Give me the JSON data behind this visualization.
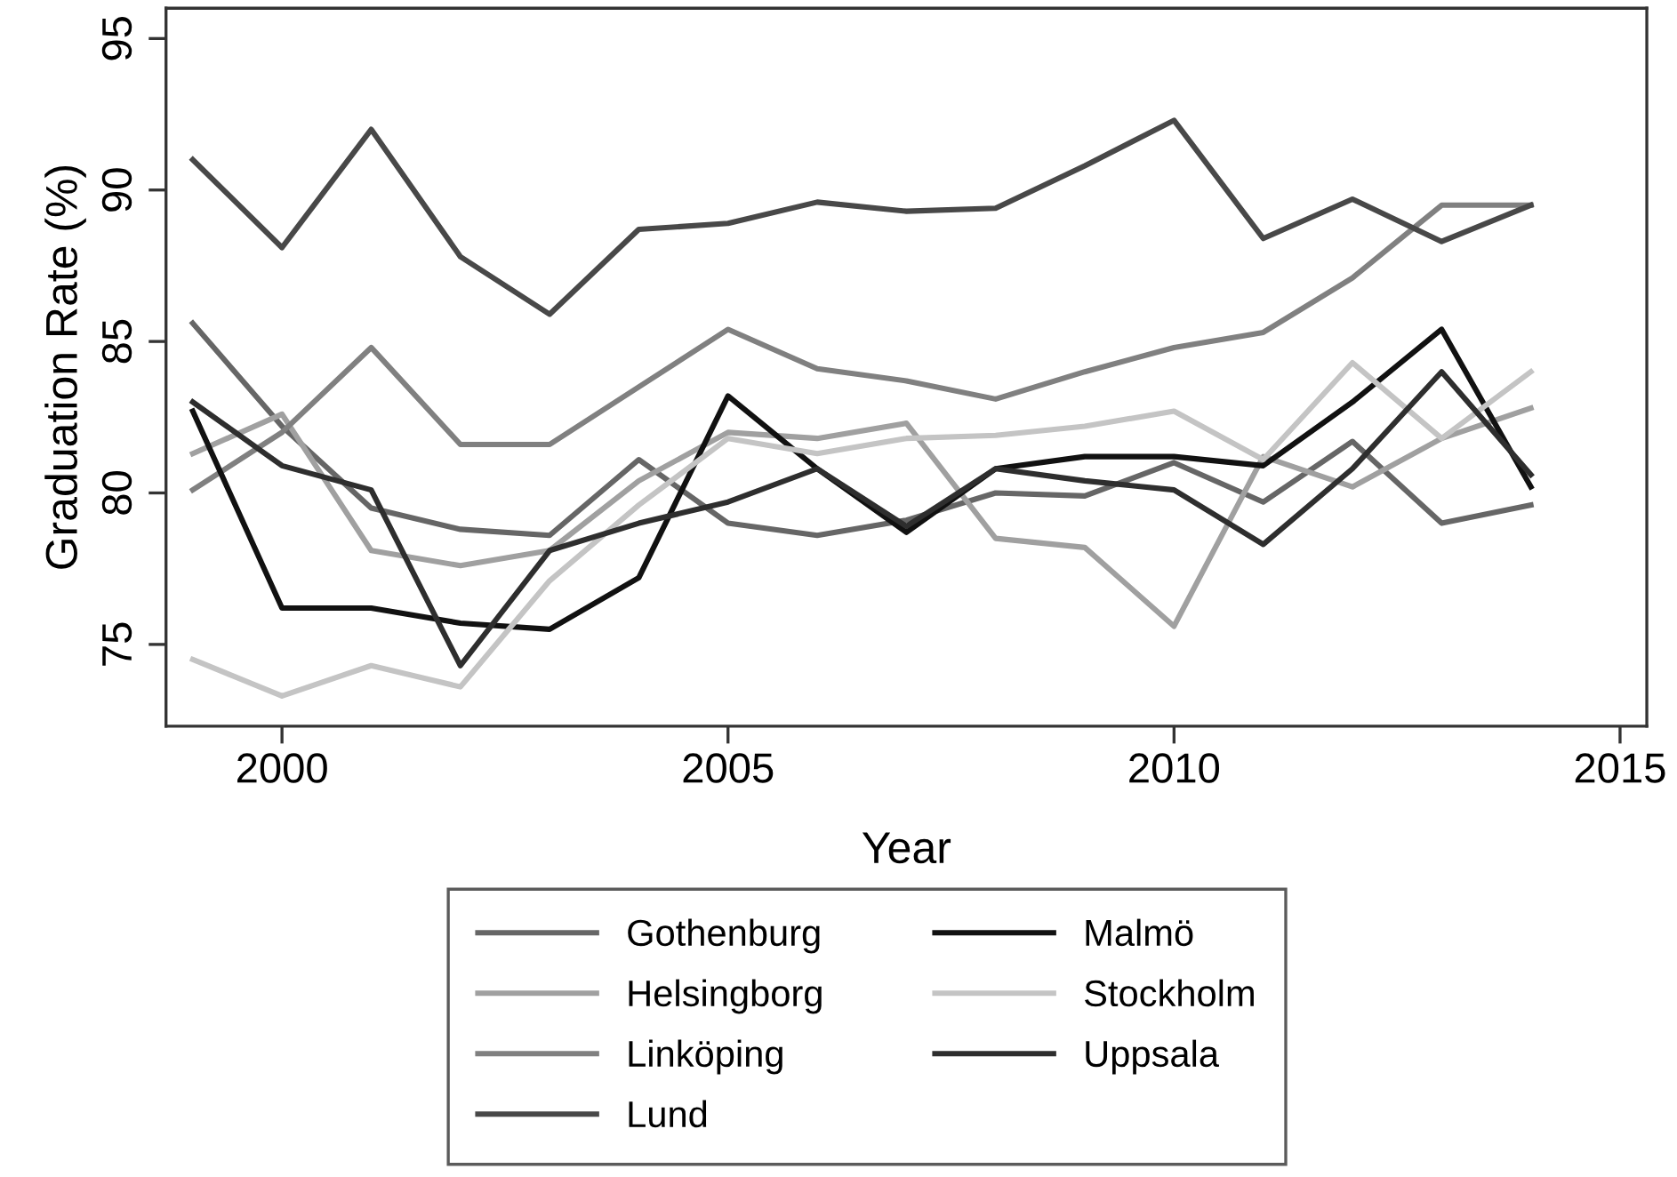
{
  "chart_data": {
    "type": "line",
    "xlabel": "Year",
    "ylabel": "Graduation Rate (%)",
    "x": [
      1999,
      2000,
      2001,
      2002,
      2003,
      2004,
      2005,
      2006,
      2007,
      2008,
      2009,
      2010,
      2011,
      2012,
      2013,
      2014
    ],
    "series": [
      {
        "name": "Gothenburg",
        "color": "#666666",
        "values": [
          85.6,
          82.2,
          79.5,
          78.8,
          78.6,
          81.1,
          79.0,
          78.6,
          79.1,
          80.0,
          79.9,
          81.0,
          79.7,
          81.7,
          79.0,
          79.6
        ]
      },
      {
        "name": "Helsingborg",
        "color": "#a0a0a0",
        "values": [
          81.3,
          82.6,
          78.1,
          77.6,
          78.1,
          80.4,
          82.0,
          81.8,
          82.3,
          78.5,
          78.2,
          75.6,
          81.2,
          80.2,
          81.8,
          82.8
        ]
      },
      {
        "name": "Linköping",
        "color": "#808080",
        "values": [
          80.1,
          82.0,
          84.8,
          81.6,
          81.6,
          83.5,
          85.4,
          84.1,
          83.7,
          83.1,
          84.0,
          84.8,
          85.3,
          87.1,
          89.5,
          89.5
        ]
      },
      {
        "name": "Lund",
        "color": "#484848",
        "values": [
          91.0,
          88.1,
          92.0,
          87.8,
          85.9,
          88.7,
          88.9,
          89.6,
          89.3,
          89.4,
          90.8,
          92.3,
          88.4,
          89.7,
          88.3,
          89.5
        ]
      },
      {
        "name": "Malmö",
        "color": "#111111",
        "values": [
          82.7,
          76.2,
          76.2,
          75.7,
          75.5,
          77.2,
          83.2,
          80.8,
          78.7,
          80.8,
          81.2,
          81.2,
          80.9,
          83.0,
          85.4,
          80.2
        ]
      },
      {
        "name": "Stockholm",
        "color": "#c4c4c4",
        "values": [
          74.5,
          73.3,
          74.3,
          73.6,
          77.1,
          79.6,
          81.8,
          81.3,
          81.8,
          81.9,
          82.2,
          82.7,
          81.1,
          84.3,
          81.8,
          84.0
        ]
      },
      {
        "name": "Uppsala",
        "color": "#2e2e2e",
        "values": [
          83.0,
          80.9,
          80.1,
          74.3,
          78.1,
          79.0,
          79.7,
          80.8,
          78.9,
          80.8,
          80.4,
          80.1,
          78.3,
          80.8,
          84.0,
          80.6
        ]
      }
    ],
    "xlim": [
      1998.7,
      2015.3
    ],
    "xticks": [
      2000,
      2005,
      2010,
      2015
    ],
    "ylim": [
      72.3,
      96.0
    ],
    "yticks": [
      75,
      80,
      85,
      90,
      95
    ],
    "grid": false,
    "legend": "bottom",
    "marker": "none",
    "line_style": "solid"
  }
}
